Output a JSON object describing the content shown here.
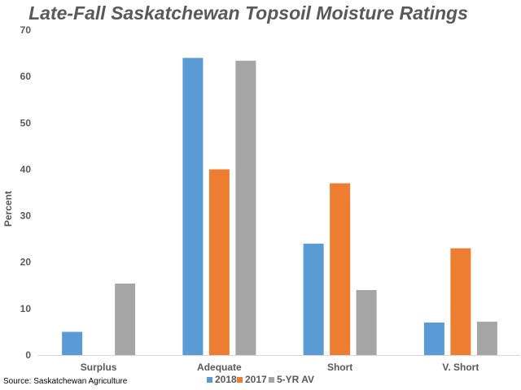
{
  "chart_data": {
    "type": "bar",
    "title": "Late-Fall Saskatchewan Topsoil Moisture Ratings",
    "ylabel": "Percent",
    "xlabel": "",
    "categories": [
      "Surplus",
      "Adequate",
      "Short",
      "V. Short"
    ],
    "series": [
      {
        "name": "2018",
        "color": "#5b9bd5",
        "values": [
          5,
          64,
          24,
          7
        ]
      },
      {
        "name": "2017",
        "color": "#ed7d31",
        "values": [
          0,
          40,
          37,
          23
        ]
      },
      {
        "name": "5-YR AV",
        "color": "#a5a5a5",
        "values": [
          15.4,
          63.4,
          14,
          7.2
        ]
      }
    ],
    "ylim": [
      0,
      70
    ],
    "yticks": [
      "0",
      "10",
      "20",
      "30",
      "40",
      "50",
      "60",
      "70"
    ],
    "grid": false,
    "legend_position": "bottom",
    "source": "Source: Saskatchewan Agriculture"
  }
}
